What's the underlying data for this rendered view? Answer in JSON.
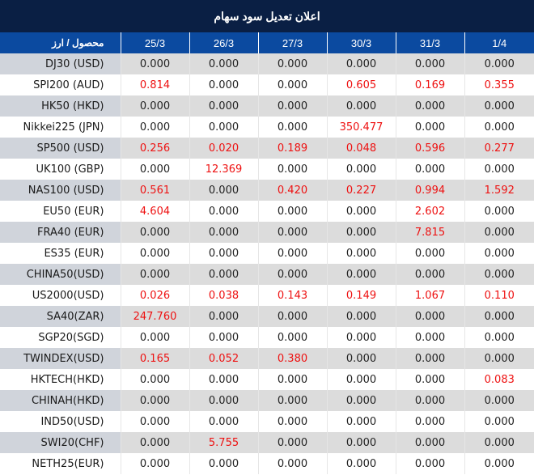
{
  "title": "اعلان تعدیل سود سهام",
  "header": {
    "label": "محصول / ارز",
    "dates": [
      "25/3",
      "26/3",
      "27/3",
      "30/3",
      "31/3",
      "1/4"
    ]
  },
  "colors": {
    "title_bg": "#0a1f44",
    "header_bg": "#0b4aa0",
    "highlight_value": "#ee1111",
    "row_alt_bg": "#dcdcdc",
    "label_alt_bg": "#d0d4db"
  },
  "rows": [
    {
      "name": "DJ30 (USD)",
      "values": [
        "0.000",
        "0.000",
        "0.000",
        "0.000",
        "0.000",
        "0.000"
      ]
    },
    {
      "name": "SPI200 (AUD)",
      "values": [
        "0.814",
        "0.000",
        "0.000",
        "0.605",
        "0.169",
        "0.355"
      ]
    },
    {
      "name": "HK50 (HKD)",
      "values": [
        "0.000",
        "0.000",
        "0.000",
        "0.000",
        "0.000",
        "0.000"
      ]
    },
    {
      "name": "Nikkei225 (JPN)",
      "values": [
        "0.000",
        "0.000",
        "0.000",
        "350.477",
        "0.000",
        "0.000"
      ]
    },
    {
      "name": "SP500 (USD)",
      "values": [
        "0.256",
        "0.020",
        "0.189",
        "0.048",
        "0.596",
        "0.277"
      ]
    },
    {
      "name": "UK100 (GBP)",
      "values": [
        "0.000",
        "12.369",
        "0.000",
        "0.000",
        "0.000",
        "0.000"
      ]
    },
    {
      "name": "NAS100 (USD)",
      "values": [
        "0.561",
        "0.000",
        "0.420",
        "0.227",
        "0.994",
        "1.592"
      ]
    },
    {
      "name": "EU50 (EUR)",
      "values": [
        "4.604",
        "0.000",
        "0.000",
        "0.000",
        "2.602",
        "0.000"
      ]
    },
    {
      "name": "FRA40 (EUR)",
      "values": [
        "0.000",
        "0.000",
        "0.000",
        "0.000",
        "7.815",
        "0.000"
      ]
    },
    {
      "name": "ES35 (EUR)",
      "values": [
        "0.000",
        "0.000",
        "0.000",
        "0.000",
        "0.000",
        "0.000"
      ]
    },
    {
      "name": "CHINA50(USD)",
      "values": [
        "0.000",
        "0.000",
        "0.000",
        "0.000",
        "0.000",
        "0.000"
      ]
    },
    {
      "name": "US2000(USD)",
      "values": [
        "0.026",
        "0.038",
        "0.143",
        "0.149",
        "1.067",
        "0.110"
      ]
    },
    {
      "name": "SA40(ZAR)",
      "values": [
        "247.760",
        "0.000",
        "0.000",
        "0.000",
        "0.000",
        "0.000"
      ]
    },
    {
      "name": "SGP20(SGD)",
      "values": [
        "0.000",
        "0.000",
        "0.000",
        "0.000",
        "0.000",
        "0.000"
      ]
    },
    {
      "name": "TWINDEX(USD)",
      "values": [
        "0.165",
        "0.052",
        "0.380",
        "0.000",
        "0.000",
        "0.000"
      ]
    },
    {
      "name": "HKTECH(HKD)",
      "values": [
        "0.000",
        "0.000",
        "0.000",
        "0.000",
        "0.000",
        "0.083"
      ]
    },
    {
      "name": "CHINAH(HKD)",
      "values": [
        "0.000",
        "0.000",
        "0.000",
        "0.000",
        "0.000",
        "0.000"
      ]
    },
    {
      "name": "IND50(USD)",
      "values": [
        "0.000",
        "0.000",
        "0.000",
        "0.000",
        "0.000",
        "0.000"
      ]
    },
    {
      "name": "SWI20(CHF)",
      "values": [
        "0.000",
        "5.755",
        "0.000",
        "0.000",
        "0.000",
        "0.000"
      ]
    },
    {
      "name": "NETH25(EUR)",
      "values": [
        "0.000",
        "0.000",
        "0.000",
        "0.000",
        "0.000",
        "0.000"
      ]
    }
  ]
}
